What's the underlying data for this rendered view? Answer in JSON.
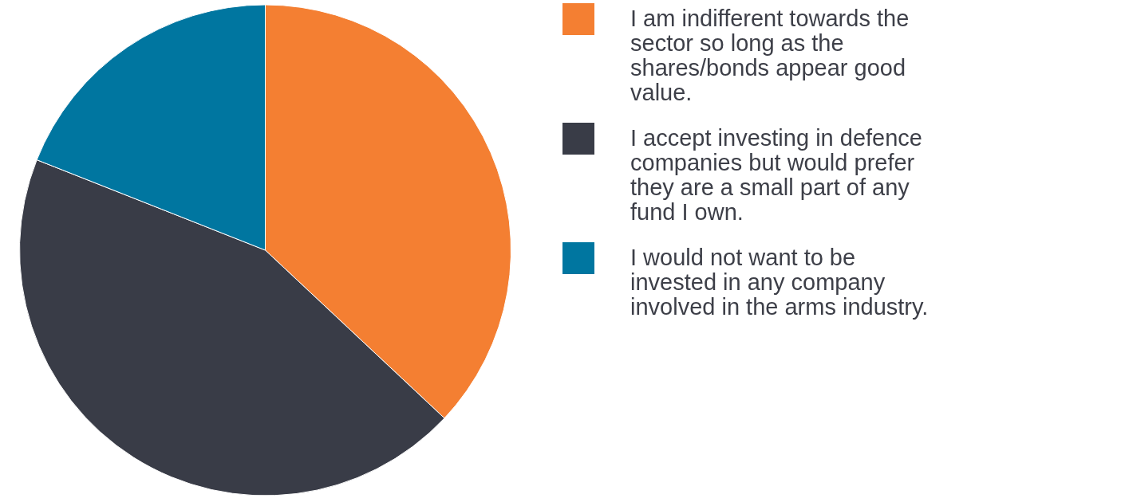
{
  "chart_data": {
    "type": "pie",
    "categories": [
      "I am indifferent towards the sector so long as the shares/bonds appear good value.",
      "I accept investing in defence companies but would prefer they are a small part of any fund I own.",
      "I would not want to be invested in any company involved in the arms industry."
    ],
    "values": [
      37,
      44,
      19
    ],
    "colors": [
      "#f47f32",
      "#393c47",
      "#0076a0"
    ],
    "legend": "right"
  }
}
